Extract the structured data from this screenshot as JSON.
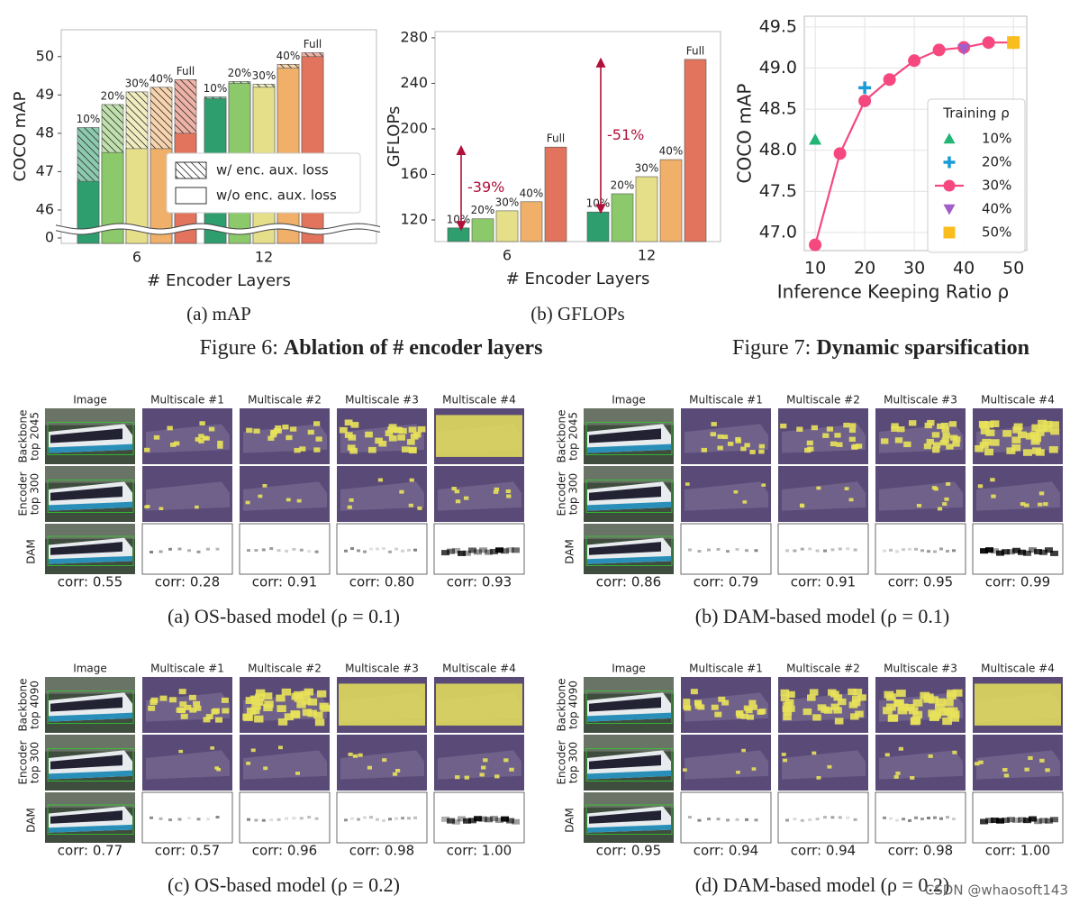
{
  "chart_data": [
    {
      "type": "bar",
      "caption": "(a) mAP",
      "xlabel": "# Encoder Layers",
      "ylabel": "COCO mAP",
      "categories": [
        "6",
        "12"
      ],
      "ylim": [
        -0.4,
        50.7
      ],
      "ybreak": [
        0.4,
        45.6
      ],
      "yticks": [
        0,
        46,
        47,
        48,
        49,
        50
      ],
      "legend": [
        "w/ enc. aux. loss",
        "w/o enc. aux. loss"
      ],
      "legend_position": "lower right",
      "series": [
        {
          "name": "10%",
          "color": "#2e9e6e",
          "values": [
            48.15,
            48.95
          ],
          "values_no_aux": [
            46.75,
            48.9
          ]
        },
        {
          "name": "20%",
          "color": "#8cc96a",
          "values": [
            48.75,
            49.35
          ],
          "values_no_aux": [
            47.5,
            49.3
          ]
        },
        {
          "name": "30%",
          "color": "#e6df8a",
          "values": [
            49.08,
            49.28
          ],
          "values_no_aux": [
            47.6,
            49.2
          ]
        },
        {
          "name": "40%",
          "color": "#f0b06a",
          "values": [
            49.2,
            49.8
          ],
          "values_no_aux": [
            47.6,
            49.7
          ]
        },
        {
          "name": "Full",
          "color": "#e2735c",
          "values": [
            49.4,
            50.1
          ],
          "values_no_aux": [
            48.0,
            50.0
          ]
        }
      ]
    },
    {
      "type": "bar",
      "caption": "(b) GFLOPs",
      "xlabel": "# Encoder Layers",
      "ylabel": "GFLOPs",
      "categories": [
        "6",
        "12"
      ],
      "ylim": [
        101,
        285.5
      ],
      "yticks": [
        120,
        160,
        200,
        240,
        280
      ],
      "annotations": [
        {
          "label": "-39%",
          "category": 0,
          "range": [
            112,
            184
          ]
        },
        {
          "label": "-51%",
          "category": 1,
          "range": [
            127,
            261
          ]
        }
      ],
      "series": [
        {
          "name": "10%",
          "color": "#2e9e6e",
          "values": [
            113,
            127
          ]
        },
        {
          "name": "20%",
          "color": "#8cc96a",
          "values": [
            121,
            143
          ]
        },
        {
          "name": "30%",
          "color": "#e6df8a",
          "values": [
            128,
            158
          ]
        },
        {
          "name": "40%",
          "color": "#f0b06a",
          "values": [
            136,
            173
          ]
        },
        {
          "name": "Full",
          "color": "#e2735c",
          "values": [
            184,
            261
          ]
        }
      ]
    },
    {
      "type": "line",
      "xlabel": "Inference Keeping Ratio ρ",
      "ylabel": "COCO mAP",
      "xlim": [
        7.8,
        52.7
      ],
      "xticks": [
        10,
        20,
        30,
        40,
        50
      ],
      "ylim": [
        46.78,
        49.63
      ],
      "yticks": [
        {
          "value": 47,
          "label": "47.0"
        },
        47.5,
        {
          "value": 48,
          "label": "48.0"
        },
        48.5,
        {
          "value": 49,
          "label": "49.0"
        },
        49.5
      ],
      "grid": true,
      "legend_title": "Training ρ",
      "legend_position": "lower right",
      "series": [
        {
          "name": "10%",
          "color": "#22b573",
          "marker": "triangle-up",
          "x": [
            10
          ],
          "values": [
            48.13
          ]
        },
        {
          "name": "20%",
          "color": "#1a9bd7",
          "marker": "plus",
          "x": [
            20
          ],
          "values": [
            48.76
          ]
        },
        {
          "name": "30%",
          "color": "#f5487f",
          "marker": "circle",
          "x": [
            10,
            15,
            20,
            25,
            30,
            35,
            40,
            45,
            50
          ],
          "values": [
            46.85,
            47.96,
            48.6,
            48.86,
            49.09,
            49.22,
            49.25,
            49.31,
            49.31
          ]
        },
        {
          "name": "40%",
          "color": "#a25ec8",
          "marker": "triangle-down",
          "x": [
            40
          ],
          "values": [
            49.23
          ]
        },
        {
          "name": "50%",
          "color": "#f9bd1e",
          "marker": "square",
          "x": [
            50
          ],
          "values": [
            49.31
          ]
        }
      ]
    }
  ],
  "figure6_caption": {
    "label": "Figure 6:",
    "text": "Ablation of # encoder layers"
  },
  "figure7_caption": {
    "label": "Figure 7:",
    "text": "Dynamic sparsification"
  },
  "panels": [
    {
      "caption": "(a) OS-based model (ρ = 0.1)",
      "columns": [
        "Image",
        "Multiscale #1",
        "Multiscale #2",
        "Multiscale #3",
        "Multiscale #4"
      ],
      "rows": [
        [
          "Backbone",
          "top 2045"
        ],
        [
          "Encoder",
          "top 300"
        ],
        [
          "DAM"
        ]
      ],
      "corr": [
        "corr: 0.55",
        "corr: 0.28",
        "corr: 0.91",
        "corr: 0.80",
        "corr: 0.93"
      ]
    },
    {
      "caption": "(b) DAM-based model (ρ = 0.1)",
      "columns": [
        "Image",
        "Multiscale #1",
        "Multiscale #2",
        "Multiscale #3",
        "Multiscale #4"
      ],
      "rows": [
        [
          "Backbone",
          "top 2045"
        ],
        [
          "Encoder",
          "top 300"
        ],
        [
          "DAM"
        ]
      ],
      "corr": [
        "corr: 0.86",
        "corr: 0.79",
        "corr: 0.91",
        "corr: 0.95",
        "corr: 0.99"
      ]
    },
    {
      "caption": "(c) OS-based model (ρ = 0.2)",
      "columns": [
        "Image",
        "Multiscale #1",
        "Multiscale #2",
        "Multiscale #3",
        "Multiscale #4"
      ],
      "rows": [
        [
          "Backbone",
          "top 4090"
        ],
        [
          "Encoder",
          "top 300"
        ],
        [
          "DAM"
        ]
      ],
      "corr": [
        "corr: 0.77",
        "corr: 0.57",
        "corr: 0.96",
        "corr: 0.98",
        "corr: 1.00"
      ]
    },
    {
      "caption": "(d) DAM-based model (ρ = 0.2)",
      "columns": [
        "Image",
        "Multiscale #1",
        "Multiscale #2",
        "Multiscale #3",
        "Multiscale #4"
      ],
      "rows": [
        [
          "Backbone",
          "top 4090"
        ],
        [
          "Encoder",
          "top 300"
        ],
        [
          "DAM"
        ]
      ],
      "corr": [
        "corr: 0.95",
        "corr: 0.94",
        "corr: 0.94",
        "corr: 0.98",
        "corr: 1.00"
      ]
    }
  ],
  "watermark": "CSDN @whaosoft143"
}
